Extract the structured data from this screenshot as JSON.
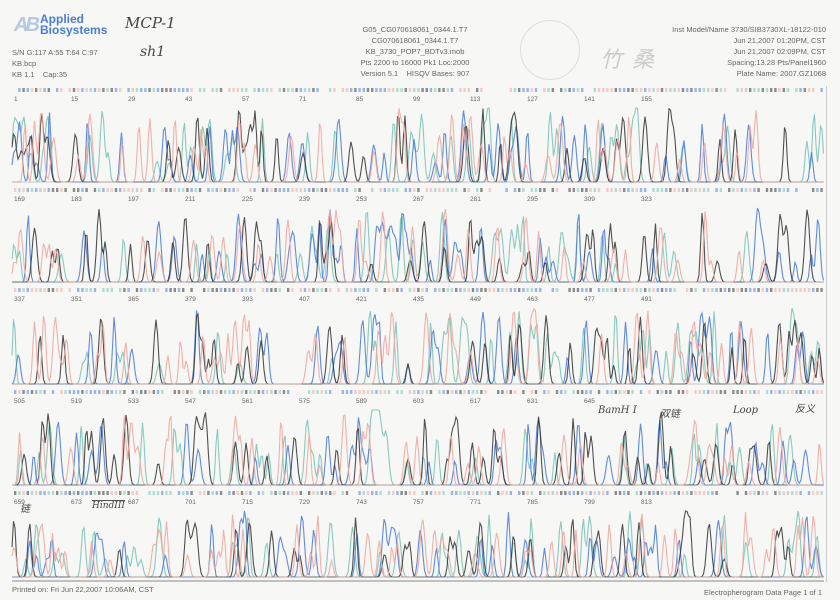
{
  "header": {
    "logo": "Applied Biosystems",
    "logo_mark": "AB",
    "handwritten_title": "MCP-1",
    "handwritten_subtitle": "sh1",
    "signal": "S/N G:117 A:55 T:64 C:97",
    "basecaller": "KB.bcp",
    "version_cap": "KB 1.1    Cap:35",
    "sample_file": "G05_CG070618061_0344.1.T7",
    "sample_name": "CG070618061_0344.1.T7",
    "mobility": "KB_3730_POP7_BDTv3.mob",
    "points": "Pts 2200 to 16000 Pk1 Loc:2000",
    "version_bases": "Version 5.1    HISQV Bases: 907",
    "instrument": "Inst Model/Name 3730/SIB3730XL-18122-010",
    "run_start": "Jun 21,2007 01:20PM, CST",
    "run_end": "Jun 21,2007 02:09PM, CST",
    "spacing": "Spacing:13.28  Pts/Panel1960",
    "plate_name": "Plate Name: 2007.GZ1068"
  },
  "stamp_text": "竹桑",
  "panels": [
    {
      "ticks": [
        "1",
        "15",
        "29",
        "43",
        "57",
        "71",
        "85",
        "99",
        "113",
        "127",
        "141",
        "155"
      ]
    },
    {
      "ticks": [
        "169",
        "183",
        "197",
        "211",
        "225",
        "239",
        "253",
        "267",
        "281",
        "295",
        "309",
        "323"
      ]
    },
    {
      "ticks": [
        "337",
        "351",
        "365",
        "379",
        "393",
        "407",
        "421",
        "435",
        "449",
        "463",
        "477",
        "491"
      ]
    },
    {
      "ticks": [
        "505",
        "519",
        "533",
        "547",
        "561",
        "575",
        "589",
        "603",
        "617",
        "631",
        "645"
      ]
    },
    {
      "ticks": [
        "659",
        "673",
        "687",
        "701",
        "715",
        "729",
        "743",
        "757",
        "771",
        "785",
        "799",
        "813"
      ]
    }
  ],
  "annotations": {
    "bamhi": "BamH I",
    "stem": "双链",
    "loop": "Loop",
    "sense": "反义",
    "sense5": "链",
    "hindiii": "HindIII"
  },
  "trace_colors": {
    "A": "#7cc4b8",
    "C": "#4f7fd8",
    "G": "#333333",
    "T": "#f0a8a0"
  },
  "footer": {
    "printed": "Printed on: Fri Jun 22,2007 10:06AM, CST",
    "page": "Electropherogram Data  Page 1 of 1"
  }
}
